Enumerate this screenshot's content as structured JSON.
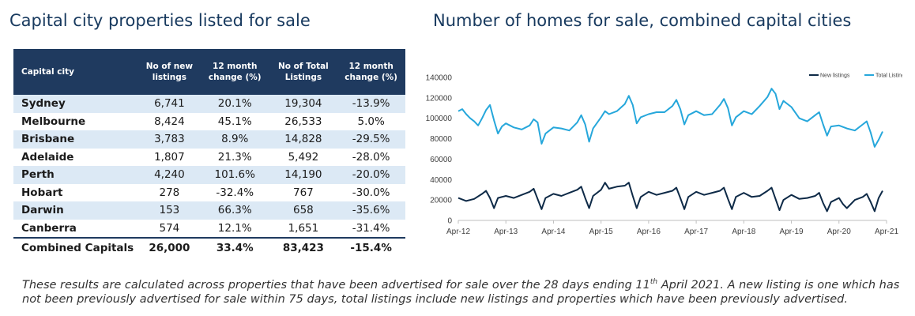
{
  "left_title": "Capital city properties listed for sale",
  "right_title": "Number of homes for sale, combined capital cities",
  "table": {
    "headers": [
      "Capital city",
      "No of new listings",
      "12 month change (%)",
      "No of Total Listings",
      "12 month change (%)"
    ],
    "rows": [
      {
        "city": "Sydney",
        "new": "6,741",
        "new_change": "20.1%",
        "total": "19,304",
        "total_change": "-13.9%"
      },
      {
        "city": "Melbourne",
        "new": "8,424",
        "new_change": "45.1%",
        "total": "26,533",
        "total_change": "5.0%"
      },
      {
        "city": "Brisbane",
        "new": "3,783",
        "new_change": "8.9%",
        "total": "14,828",
        "total_change": "-29.5%"
      },
      {
        "city": "Adelaide",
        "new": "1,807",
        "new_change": "21.3%",
        "total": "5,492",
        "total_change": "-28.0%"
      },
      {
        "city": "Perth",
        "new": "4,240",
        "new_change": "101.6%",
        "total": "14,190",
        "total_change": "-20.0%"
      },
      {
        "city": "Hobart",
        "new": "278",
        "new_change": "-32.4%",
        "total": "767",
        "total_change": "-30.0%"
      },
      {
        "city": "Darwin",
        "new": "153",
        "new_change": "66.3%",
        "total": "658",
        "total_change": "-35.6%"
      },
      {
        "city": "Canberra",
        "new": "574",
        "new_change": "12.1%",
        "total": "1,651",
        "total_change": "-31.4%"
      }
    ],
    "total_row": {
      "city": "Combined Capitals",
      "new": "26,000",
      "new_change": "33.4%",
      "total": "83,423",
      "total_change": "-15.4%"
    }
  },
  "chart_data": {
    "type": "line",
    "title": "Number of homes for sale, combined capital cities",
    "xlabel": "",
    "ylabel": "",
    "ylim": [
      0,
      140000
    ],
    "yticks": [
      0,
      20000,
      40000,
      60000,
      80000,
      100000,
      120000,
      140000
    ],
    "ytick_labels": [
      "0",
      "20000",
      "40000",
      "60000",
      "80000",
      "100000",
      "120000",
      "140000"
    ],
    "x_tick_labels": [
      "Apr-12",
      "Apr-13",
      "Apr-14",
      "Apr-15",
      "Apr-16",
      "Apr-17",
      "Apr-18",
      "Apr-19",
      "Apr-20",
      "Apr-21"
    ],
    "x_unit": "months since Apr-12",
    "x_range": [
      0,
      108
    ],
    "legend_position": "top-right",
    "grid": false,
    "series": [
      {
        "name": "New listings",
        "color": "#0e2a47",
        "points": [
          [
            0,
            22000
          ],
          [
            2,
            19000
          ],
          [
            4,
            21000
          ],
          [
            6,
            26000
          ],
          [
            7,
            29000
          ],
          [
            8,
            22000
          ],
          [
            9,
            12000
          ],
          [
            10,
            22000
          ],
          [
            12,
            24000
          ],
          [
            14,
            22000
          ],
          [
            16,
            25000
          ],
          [
            18,
            28000
          ],
          [
            19,
            31000
          ],
          [
            20,
            21000
          ],
          [
            21,
            11000
          ],
          [
            22,
            22000
          ],
          [
            24,
            26000
          ],
          [
            26,
            24000
          ],
          [
            28,
            27000
          ],
          [
            30,
            30000
          ],
          [
            31,
            33000
          ],
          [
            32,
            22000
          ],
          [
            33,
            12000
          ],
          [
            34,
            24000
          ],
          [
            36,
            30000
          ],
          [
            37,
            37000
          ],
          [
            38,
            31000
          ],
          [
            40,
            33000
          ],
          [
            42,
            34000
          ],
          [
            43,
            37000
          ],
          [
            44,
            24000
          ],
          [
            45,
            12000
          ],
          [
            46,
            23000
          ],
          [
            48,
            28000
          ],
          [
            50,
            25000
          ],
          [
            52,
            27000
          ],
          [
            54,
            29000
          ],
          [
            55,
            32000
          ],
          [
            56,
            22000
          ],
          [
            57,
            11000
          ],
          [
            58,
            23000
          ],
          [
            60,
            28000
          ],
          [
            62,
            25000
          ],
          [
            64,
            27000
          ],
          [
            66,
            29000
          ],
          [
            67,
            32000
          ],
          [
            68,
            21000
          ],
          [
            69,
            11000
          ],
          [
            70,
            23000
          ],
          [
            72,
            27000
          ],
          [
            74,
            23000
          ],
          [
            76,
            24000
          ],
          [
            78,
            29000
          ],
          [
            79,
            32000
          ],
          [
            80,
            21000
          ],
          [
            81,
            10000
          ],
          [
            82,
            20000
          ],
          [
            84,
            25000
          ],
          [
            86,
            21000
          ],
          [
            88,
            22000
          ],
          [
            90,
            24000
          ],
          [
            91,
            27000
          ],
          [
            92,
            17000
          ],
          [
            93,
            9000
          ],
          [
            94,
            18000
          ],
          [
            96,
            22000
          ],
          [
            97,
            16000
          ],
          [
            98,
            12000
          ],
          [
            100,
            20000
          ],
          [
            102,
            23000
          ],
          [
            103,
            26000
          ],
          [
            104,
            18000
          ],
          [
            105,
            9000
          ],
          [
            106,
            22000
          ],
          [
            107,
            29000
          ]
        ]
      },
      {
        "name": "Total Listings",
        "color": "#26a7db",
        "points": [
          [
            0,
            107000
          ],
          [
            1,
            109000
          ],
          [
            2,
            104000
          ],
          [
            3,
            100000
          ],
          [
            4,
            97000
          ],
          [
            5,
            93000
          ],
          [
            6,
            100000
          ],
          [
            7,
            108000
          ],
          [
            8,
            113000
          ],
          [
            9,
            98000
          ],
          [
            10,
            85000
          ],
          [
            11,
            92000
          ],
          [
            12,
            95000
          ],
          [
            14,
            91000
          ],
          [
            16,
            89000
          ],
          [
            18,
            93000
          ],
          [
            19,
            99000
          ],
          [
            20,
            96000
          ],
          [
            21,
            75000
          ],
          [
            22,
            85000
          ],
          [
            24,
            91000
          ],
          [
            26,
            90000
          ],
          [
            28,
            88000
          ],
          [
            30,
            96000
          ],
          [
            31,
            103000
          ],
          [
            32,
            94000
          ],
          [
            33,
            77000
          ],
          [
            34,
            90000
          ],
          [
            36,
            101000
          ],
          [
            37,
            107000
          ],
          [
            38,
            104000
          ],
          [
            40,
            107000
          ],
          [
            42,
            114000
          ],
          [
            43,
            122000
          ],
          [
            44,
            113000
          ],
          [
            45,
            95000
          ],
          [
            46,
            101000
          ],
          [
            48,
            104000
          ],
          [
            50,
            106000
          ],
          [
            52,
            106000
          ],
          [
            54,
            112000
          ],
          [
            55,
            118000
          ],
          [
            56,
            109000
          ],
          [
            57,
            94000
          ],
          [
            58,
            103000
          ],
          [
            60,
            107000
          ],
          [
            62,
            103000
          ],
          [
            64,
            104000
          ],
          [
            66,
            113000
          ],
          [
            67,
            119000
          ],
          [
            68,
            110000
          ],
          [
            69,
            93000
          ],
          [
            70,
            101000
          ],
          [
            72,
            107000
          ],
          [
            74,
            104000
          ],
          [
            76,
            112000
          ],
          [
            78,
            121000
          ],
          [
            79,
            129000
          ],
          [
            80,
            124000
          ],
          [
            81,
            109000
          ],
          [
            82,
            117000
          ],
          [
            84,
            111000
          ],
          [
            86,
            100000
          ],
          [
            88,
            97000
          ],
          [
            90,
            103000
          ],
          [
            91,
            106000
          ],
          [
            92,
            94000
          ],
          [
            93,
            83000
          ],
          [
            94,
            92000
          ],
          [
            96,
            93000
          ],
          [
            98,
            90000
          ],
          [
            100,
            88000
          ],
          [
            102,
            94000
          ],
          [
            103,
            97000
          ],
          [
            104,
            86000
          ],
          [
            105,
            72000
          ],
          [
            106,
            79000
          ],
          [
            107,
            87000
          ]
        ]
      }
    ]
  },
  "footnote": {
    "part1": "These results are calculated across properties that have been advertised for sale over the 28 days ending 11",
    "sup": "th",
    "part2": " April 2021.  A new listing is one which has not been previously advertised for sale within 75 days, total listings include new listings and properties which have been previously advertised."
  }
}
